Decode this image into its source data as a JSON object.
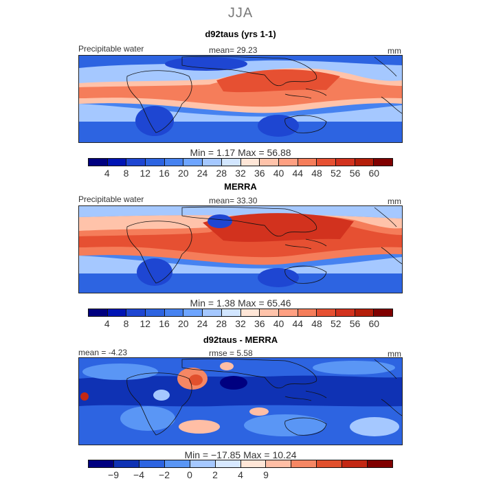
{
  "figure": {
    "season": "JJA"
  },
  "colors": {
    "full": [
      "#000080",
      "#0014b4",
      "#1e46d2",
      "#2d64e1",
      "#4682f0",
      "#6ea5ff",
      "#a5c8ff",
      "#d2e6ff",
      "#ffe6d7",
      "#ffc3aa",
      "#ffa082",
      "#f57d5a",
      "#e65032",
      "#d2321e",
      "#b41e0a",
      "#800000"
    ],
    "diff": [
      "#000080",
      "#0f32b4",
      "#2d64e1",
      "#5a96f5",
      "#a5c8ff",
      "#d7e8ff",
      "#ffe6d7",
      "#ffbea5",
      "#f58764",
      "#e1502d",
      "#c32814",
      "#800000"
    ]
  },
  "panels": [
    {
      "id": "model",
      "title": "d92taus (yrs 1-1)",
      "field_label": "Precipitable water",
      "stat_text": "mean=  29.23",
      "units": "mm",
      "minmax_text": "Min =    1.17  Max =   56.88",
      "colorbar": {
        "scale": "full",
        "tick_labels": [
          "4",
          "8",
          "12",
          "16",
          "20",
          "24",
          "28",
          "32",
          "36",
          "40",
          "44",
          "48",
          "52",
          "56",
          "60"
        ]
      }
    },
    {
      "id": "merra",
      "title": "MERRA",
      "field_label": "Precipitable water",
      "stat_text": "mean=  33.30",
      "units": "mm",
      "minmax_text": "Min =    1.38  Max =   65.46",
      "colorbar": {
        "scale": "full",
        "tick_labels": [
          "4",
          "8",
          "12",
          "16",
          "20",
          "24",
          "28",
          "32",
          "36",
          "40",
          "44",
          "48",
          "52",
          "56",
          "60"
        ]
      }
    },
    {
      "id": "diff",
      "title": "d92taus - MERRA",
      "mean_text": "mean =  -4.23",
      "rmse_text": "rmse =   5.58",
      "units": "mm",
      "minmax_text": "Min = −17.85  Max =  10.24",
      "colorbar": {
        "scale": "diff",
        "tick_labels": [
          "−9",
          "−4",
          "−2",
          "0",
          "2",
          "4",
          "9"
        ]
      }
    }
  ],
  "chart_data": [
    {
      "type": "heatmap",
      "title": "d92taus (yrs 1-1)",
      "variable": "Precipitable water",
      "units": "mm",
      "mean": 29.23,
      "min": 1.17,
      "max": 56.88,
      "levels": [
        4,
        8,
        12,
        16,
        20,
        24,
        28,
        32,
        36,
        40,
        44,
        48,
        52,
        56,
        60
      ]
    },
    {
      "type": "heatmap",
      "title": "MERRA",
      "variable": "Precipitable water",
      "units": "mm",
      "mean": 33.3,
      "min": 1.38,
      "max": 65.46,
      "levels": [
        4,
        8,
        12,
        16,
        20,
        24,
        28,
        32,
        36,
        40,
        44,
        48,
        52,
        56,
        60
      ]
    },
    {
      "type": "heatmap",
      "title": "d92taus - MERRA",
      "units": "mm",
      "mean": -4.23,
      "rmse": 5.58,
      "min": -17.85,
      "max": 10.24,
      "levels": [
        -9,
        -4,
        -2,
        0,
        2,
        4,
        9
      ]
    }
  ]
}
